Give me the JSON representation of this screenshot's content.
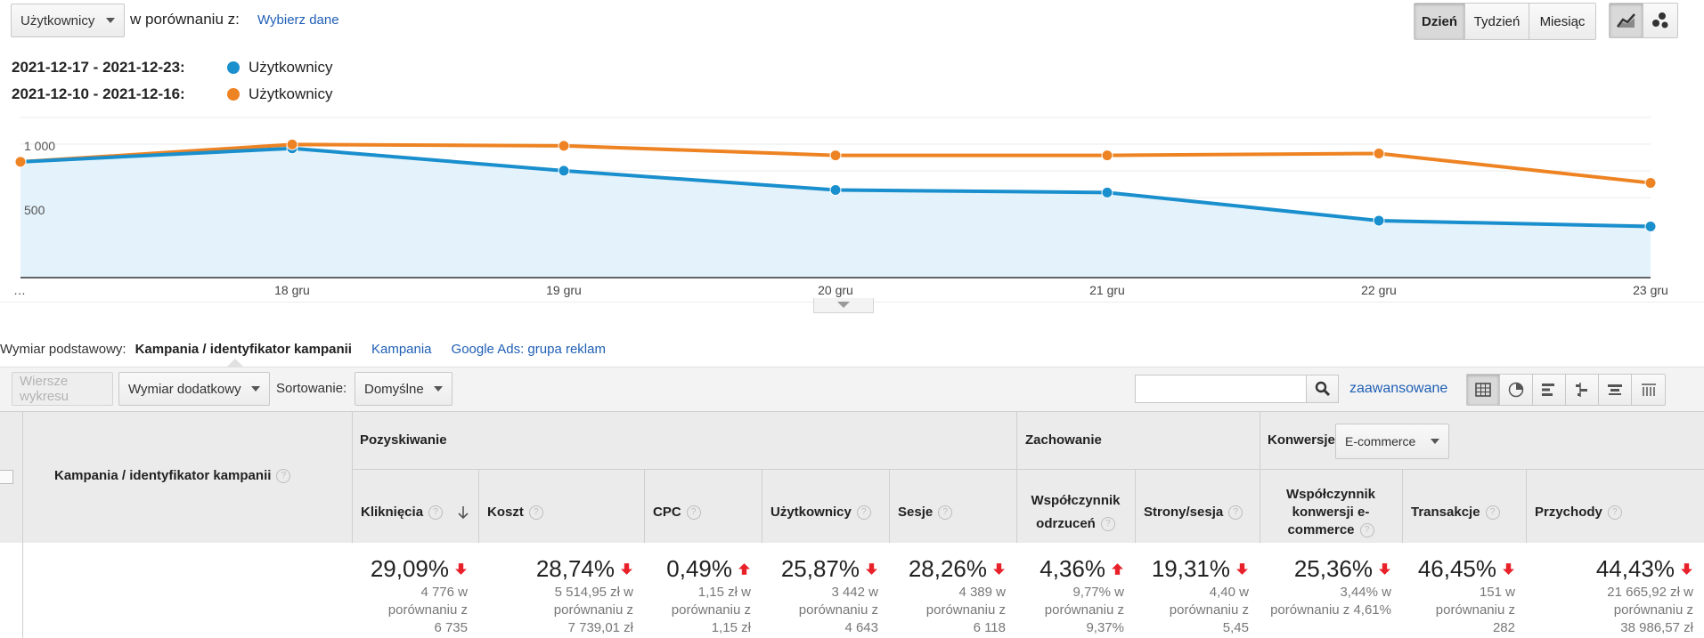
{
  "metric_selector": {
    "value": "Użytkownicy"
  },
  "compare": {
    "label": "w porównaniu z:",
    "link": "Wybierz dane"
  },
  "granularity": [
    "Dzień",
    "Tydzień",
    "Miesiąc"
  ],
  "legend": [
    {
      "range": "2021-12-17 - 2021-12-23:",
      "label": "Użytkownicy",
      "color": "#1a8fcd"
    },
    {
      "range": "2021-12-10 - 2021-12-16:",
      "label": "Użytkownicy",
      "color": "#ee8323"
    }
  ],
  "chart_data": {
    "type": "line",
    "x": [
      "…",
      "18 gru",
      "19 gru",
      "20 gru",
      "21 gru",
      "22 gru",
      "23 gru"
    ],
    "y_ticks": [
      "1 000",
      "500"
    ],
    "ylim": [
      0,
      1300
    ],
    "series": [
      {
        "name": "Użytkownicy 2021-12-17 - 2021-12-23",
        "color": "#1a8fcd",
        "values": [
          905,
          1010,
          835,
          685,
          665,
          445,
          400
        ]
      },
      {
        "name": "Użytkownicy 2021-12-10 - 2021-12-16",
        "color": "#ee8323",
        "values": [
          905,
          1040,
          1030,
          955,
          955,
          970,
          740
        ]
      }
    ]
  },
  "dimension": {
    "label": "Wymiar podstawowy:",
    "current": "Kampania / identyfikator kampanii",
    "options": [
      "Kampania",
      "Google Ads: grupa reklam"
    ]
  },
  "toolbar": {
    "plot_rows": "Wiersze wykresu",
    "secondary": "Wymiar dodatkowy",
    "sort_label": "Sortowanie:",
    "sort_value": "Domyślne",
    "advanced": "zaawansowane"
  },
  "table": {
    "dim_header": "Kampania / identyfikator kampanii",
    "groups": {
      "acq": "Pozyskiwanie",
      "beh": "Zachowanie",
      "conv": "Konwersje",
      "conv_select": "E-commerce"
    },
    "columns": [
      {
        "h1": "Kliknięcia",
        "h2": "",
        "h3": "",
        "pct": "29,09%",
        "dir": "down",
        "s1": "4 776 w",
        "s2": "porównaniu z",
        "s3": "6 735"
      },
      {
        "h1": "Koszt",
        "h2": "",
        "h3": "",
        "pct": "28,74%",
        "dir": "down",
        "s1": "5 514,95 zł w",
        "s2": "porównaniu z",
        "s3": "7 739,01 zł"
      },
      {
        "h1": "CPC",
        "h2": "",
        "h3": "",
        "pct": "0,49%",
        "dir": "up",
        "s1": "1,15 zł w",
        "s2": "porównaniu z",
        "s3": "1,15 zł"
      },
      {
        "h1": "Użytkownicy",
        "h2": "",
        "h3": "",
        "pct": "25,87%",
        "dir": "down",
        "s1": "3 442 w",
        "s2": "porównaniu z",
        "s3": "4 643"
      },
      {
        "h1": "Sesje",
        "h2": "",
        "h3": "",
        "pct": "28,26%",
        "dir": "down",
        "s1": "4 389 w",
        "s2": "porównaniu z",
        "s3": "6 118"
      },
      {
        "h1": "Współczynnik",
        "h2": "odrzuceń",
        "h3": "",
        "pct": "4,36%",
        "dir": "up",
        "s1": "9,77% w",
        "s2": "porównaniu z",
        "s3": "9,37%"
      },
      {
        "h1": "Strony/sesja",
        "h2": "",
        "h3": "",
        "pct": "19,31%",
        "dir": "down",
        "s1": "4,40 w",
        "s2": "porównaniu z",
        "s3": "5,45"
      },
      {
        "h1": "Współczynnik",
        "h2": "konwersji e-",
        "h3": "commerce",
        "pct": "25,36%",
        "dir": "down",
        "s1": "3,44% w",
        "s2": "porównaniu z 4,61%",
        "s3": ""
      },
      {
        "h1": "Transakcje",
        "h2": "",
        "h3": "",
        "pct": "46,45%",
        "dir": "down",
        "s1": "151 w",
        "s2": "porównaniu z",
        "s3": "282"
      },
      {
        "h1": "Przychody",
        "h2": "",
        "h3": "",
        "pct": "44,43%",
        "dir": "down",
        "s1": "21 665,92 zł w",
        "s2": "porównaniu z",
        "s3": "38 986,57 zł"
      }
    ]
  }
}
